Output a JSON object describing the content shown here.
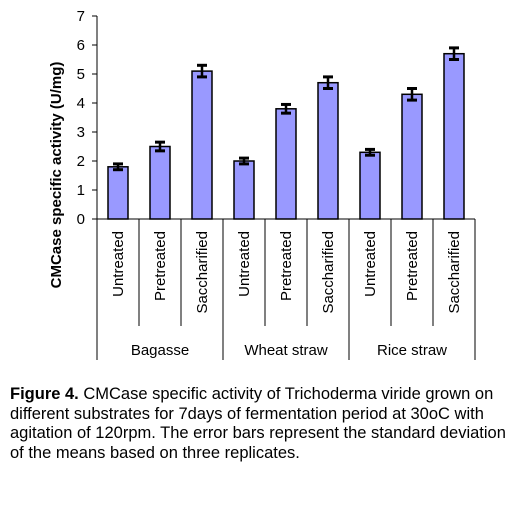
{
  "chart_data": {
    "type": "bar",
    "ylabel": "CMCase specific activity (U/mg)",
    "ylim": [
      0,
      7
    ],
    "yticks": [
      0,
      1,
      2,
      3,
      4,
      5,
      6,
      7
    ],
    "groups": [
      {
        "name": "Bagasse",
        "categories": [
          "Untreated",
          "Pretreated",
          "Saccharified"
        ],
        "values": [
          1.8,
          2.5,
          5.1
        ],
        "errors": [
          0.1,
          0.15,
          0.2
        ]
      },
      {
        "name": "Wheat straw",
        "categories": [
          "Untreated",
          "Pretreated",
          "Saccharified"
        ],
        "values": [
          2.0,
          3.8,
          4.7
        ],
        "errors": [
          0.1,
          0.15,
          0.2
        ]
      },
      {
        "name": "Rice straw",
        "categories": [
          "Untreated",
          "Pretreated",
          "Saccharified"
        ],
        "values": [
          2.3,
          4.3,
          5.7
        ],
        "errors": [
          0.1,
          0.2,
          0.2
        ]
      }
    ],
    "bar_color": "#9999ff",
    "bar_edge_color": "#000000",
    "grid": false
  },
  "caption": {
    "label": "Figure 4.",
    "text": " CMCase specific activity of Trichoderma viride grown on different substrates for 7days of fermentation period at 30oC with agitation of 120rpm. The error bars represent the standard deviation of the means based on three replicates."
  }
}
